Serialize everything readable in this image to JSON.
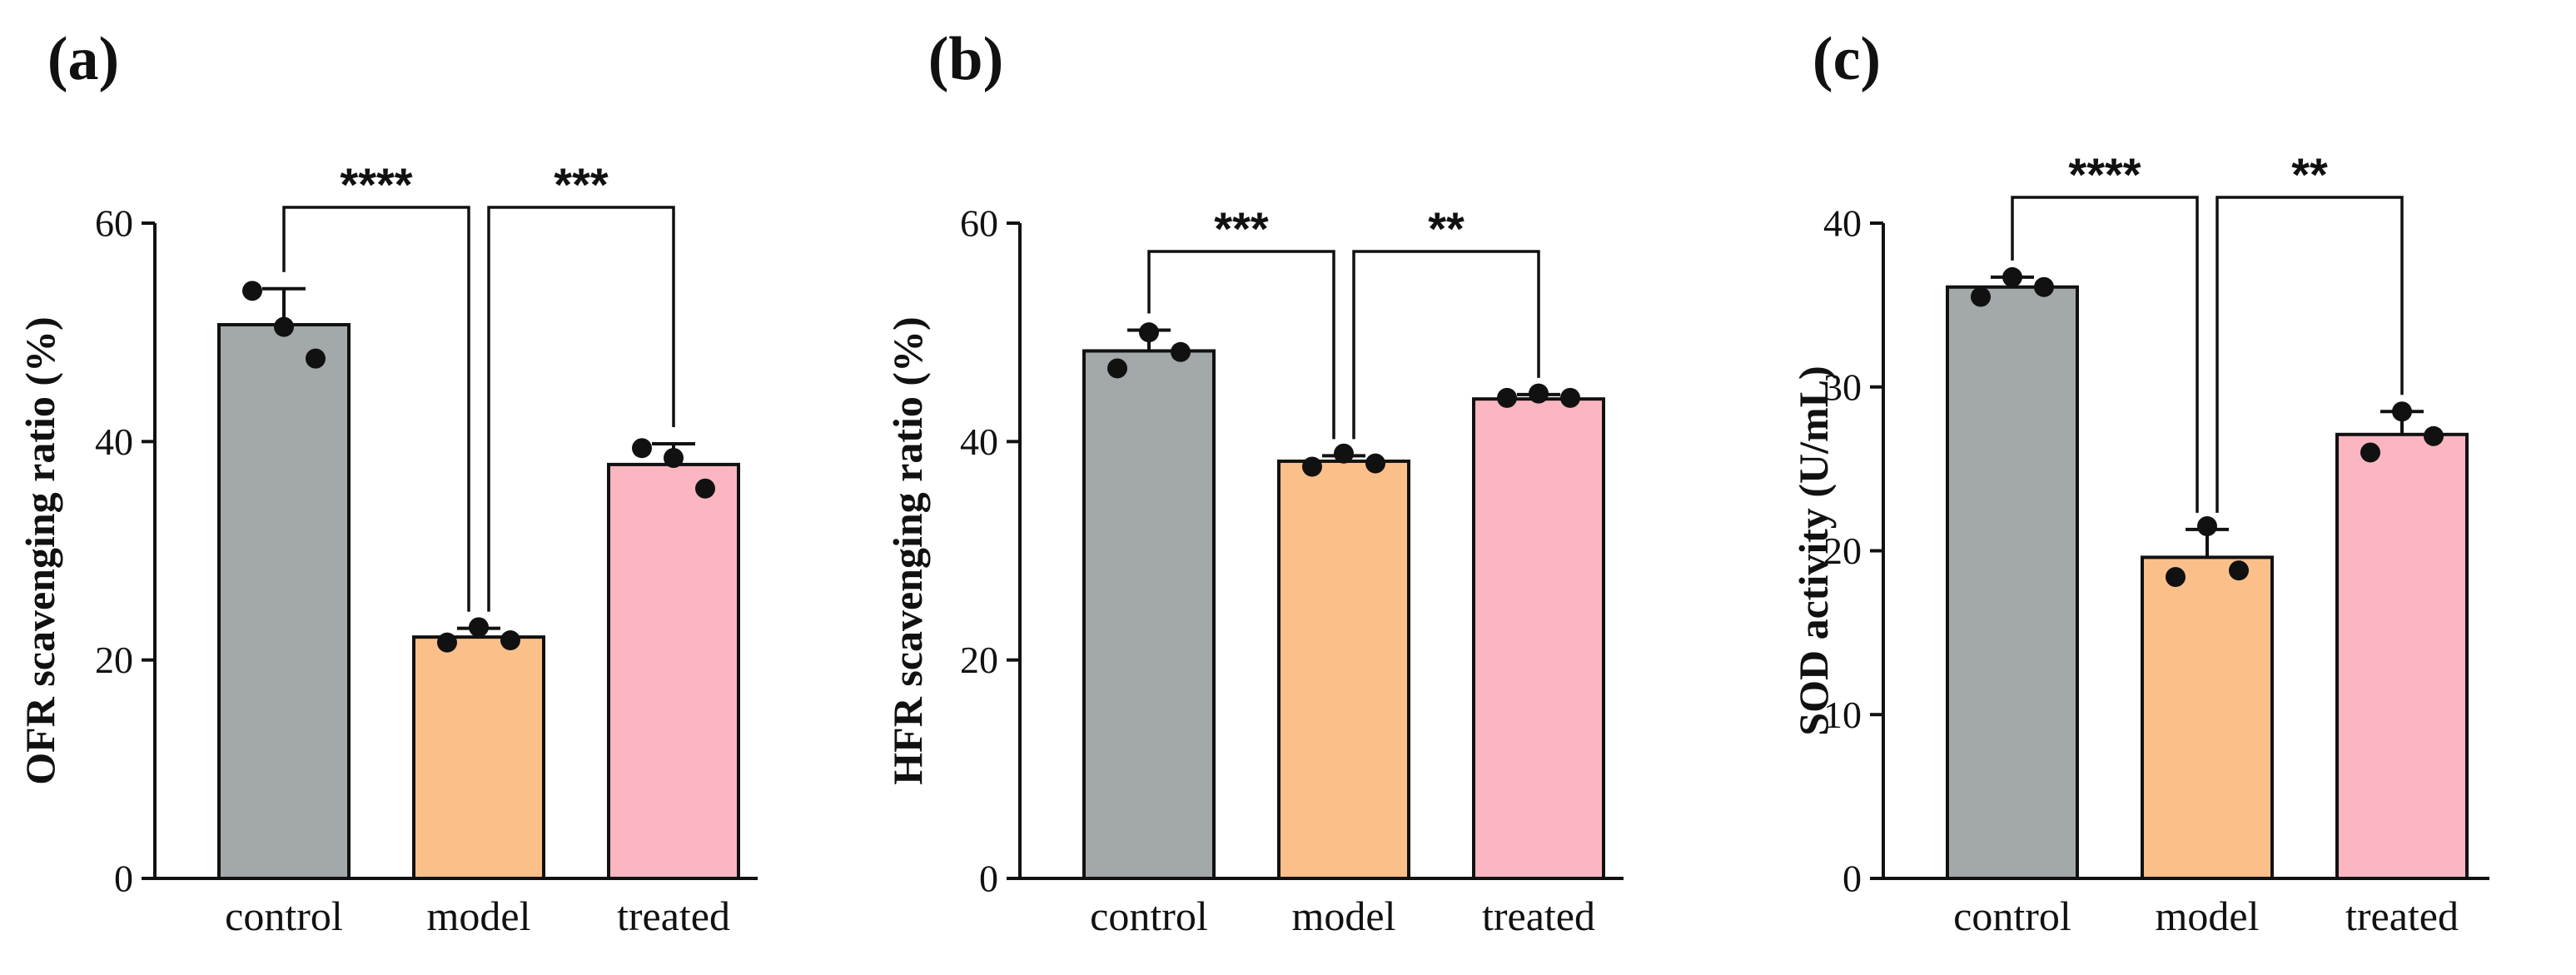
{
  "chart_data": [
    {
      "type": "bar",
      "panel_label": "(a)",
      "categories": [
        "control",
        "model",
        "treated"
      ],
      "values": [
        50.7,
        22.1,
        37.9
      ],
      "errors": [
        3.3,
        0.8,
        1.9
      ],
      "points": [
        [
          53.8,
          50.5,
          47.6
        ],
        [
          21.6,
          23.0,
          21.8
        ],
        [
          39.4,
          38.5,
          35.7
        ]
      ],
      "ylabel": "OFR scavenging ratio (%)",
      "ylim": [
        0,
        60
      ],
      "yticks": [
        "0",
        "20",
        "40",
        "60"
      ],
      "colors": [
        "#A3A8AB",
        "#FBC08A",
        "#FBB6C1"
      ],
      "comparisons": [
        {
          "from": 0,
          "to": 1,
          "label": "****"
        },
        {
          "from": 1,
          "to": 2,
          "label": "***"
        }
      ]
    },
    {
      "type": "bar",
      "panel_label": "(b)",
      "categories": [
        "control",
        "model",
        "treated"
      ],
      "values": [
        48.3,
        38.2,
        43.9
      ],
      "errors": [
        1.9,
        0.5,
        0.4
      ],
      "points": [
        [
          46.7,
          50.0,
          48.2
        ],
        [
          37.7,
          38.9,
          38.0
        ],
        [
          44.0,
          44.4,
          44.0
        ]
      ],
      "ylabel": "HFR scavenging ratio (%)",
      "ylim": [
        0,
        60
      ],
      "yticks": [
        "0",
        "20",
        "40",
        "60"
      ],
      "colors": [
        "#A3A8AB",
        "#FBC08A",
        "#FBB6C1"
      ],
      "comparisons": [
        {
          "from": 0,
          "to": 1,
          "label": "***"
        },
        {
          "from": 1,
          "to": 2,
          "label": "**"
        }
      ]
    },
    {
      "type": "bar",
      "panel_label": "(c)",
      "categories": [
        "control",
        "model",
        "treated"
      ],
      "values": [
        36.1,
        19.6,
        27.1
      ],
      "errors": [
        0.6,
        1.7,
        1.4
      ],
      "points": [
        [
          35.5,
          36.7,
          36.1
        ],
        [
          18.4,
          21.5,
          18.8
        ],
        [
          26.0,
          28.5,
          27.0
        ]
      ],
      "ylabel": "SOD activity (U/mL)",
      "ylim": [
        0,
        40
      ],
      "yticks": [
        "0",
        "10",
        "20",
        "30",
        "40"
      ],
      "colors": [
        "#A3A8AB",
        "#FBC08A",
        "#FBB6C1"
      ],
      "comparisons": [
        {
          "from": 0,
          "to": 1,
          "label": "****"
        },
        {
          "from": 1,
          "to": 2,
          "label": "**"
        }
      ]
    }
  ]
}
